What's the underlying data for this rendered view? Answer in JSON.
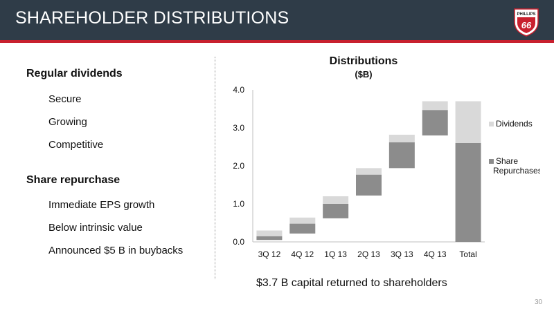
{
  "header": {
    "title": "SHAREHOLDER DISTRIBUTIONS",
    "logo_text_top": "PHILLIPS",
    "logo_text_main": "66"
  },
  "left": {
    "section1": {
      "heading": "Regular dividends",
      "items": [
        "Secure",
        "Growing",
        "Competitive"
      ]
    },
    "section2": {
      "heading": "Share repurchase",
      "items": [
        "Immediate EPS growth",
        "Below intrinsic value",
        "Announced $5 B in buybacks"
      ]
    }
  },
  "footnote": "$3.7 B capital returned to shareholders",
  "page_number": "30",
  "colors": {
    "header_bg": "#2f3c48",
    "accent_red": "#c8202e",
    "repurchases": "#8c8c8c",
    "dividends": "#d9d9d9"
  },
  "chart_data": {
    "type": "bar",
    "subtype": "waterfall-stacked",
    "title": "Distributions",
    "subtitle": "($B)",
    "categories": [
      "3Q 12",
      "4Q 12",
      "1Q 13",
      "2Q 13",
      "3Q 13",
      "4Q 13",
      "Total"
    ],
    "ylim": [
      0,
      4.0
    ],
    "yticks": [
      "0.0",
      "1.0",
      "2.0",
      "3.0",
      "4.0"
    ],
    "legend_position": "right",
    "series": [
      {
        "name": "Share Repurchases",
        "color": "#8c8c8c",
        "bases": [
          0.05,
          0.22,
          0.62,
          1.22,
          1.94,
          2.8,
          0.0
        ],
        "values": [
          0.1,
          0.26,
          0.38,
          0.55,
          0.68,
          0.67,
          2.6
        ]
      },
      {
        "name": "Dividends",
        "color": "#d9d9d9",
        "bases": [
          0.15,
          0.48,
          1.0,
          1.77,
          2.62,
          3.47,
          2.6
        ],
        "values": [
          0.15,
          0.16,
          0.2,
          0.17,
          0.2,
          0.23,
          1.1
        ]
      }
    ]
  }
}
